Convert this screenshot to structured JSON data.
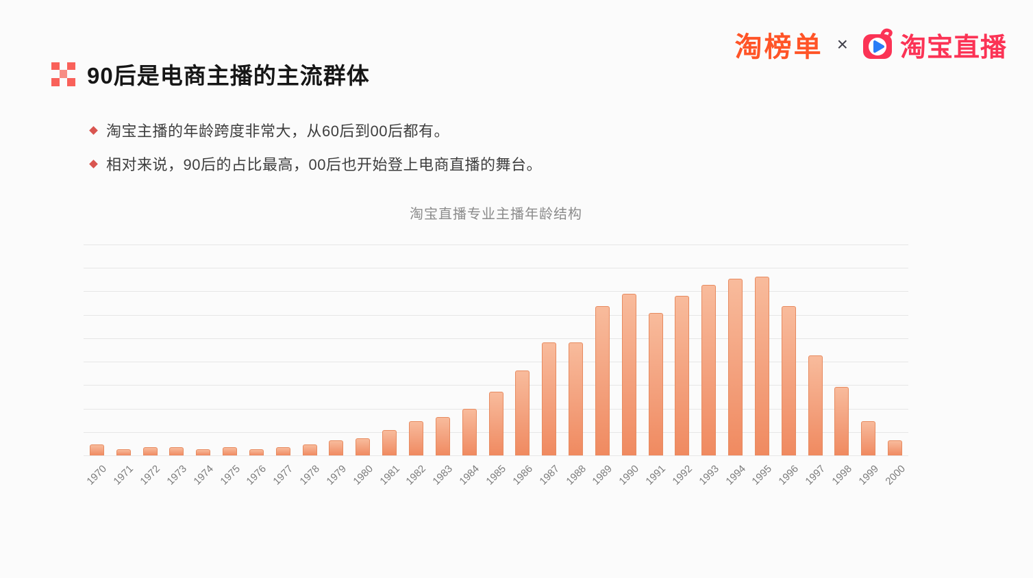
{
  "header": {
    "brand_left": "淘榜单",
    "separator": "×",
    "brand_right": "淘宝直播"
  },
  "title": {
    "text": "90后是电商主播的主流群体"
  },
  "bullets": [
    {
      "text": "淘宝主播的年龄跨度非常大，从60后到00后都有。"
    },
    {
      "text": "相对来说，90后的占比最高，00后也开始登上电商直播的舞台。"
    }
  ],
  "chart_data": {
    "type": "bar",
    "title": "淘宝直播专业主播年龄结构",
    "categories": [
      "1970",
      "1971",
      "1972",
      "1973",
      "1974",
      "1975",
      "1976",
      "1977",
      "1978",
      "1979",
      "1980",
      "1981",
      "1982",
      "1983",
      "1984",
      "1985",
      "1986",
      "1987",
      "1988",
      "1989",
      "1990",
      "1991",
      "1992",
      "1993",
      "1994",
      "1995",
      "1996",
      "1997",
      "1998",
      "1999",
      "2000"
    ],
    "values": [
      0.5,
      0.3,
      0.4,
      0.4,
      0.3,
      0.4,
      0.3,
      0.4,
      0.5,
      0.7,
      0.8,
      1.2,
      1.6,
      1.8,
      2.2,
      3.0,
      4.0,
      5.3,
      5.3,
      7.0,
      7.6,
      6.7,
      7.5,
      8.0,
      8.3,
      8.4,
      7.0,
      4.7,
      3.2,
      1.6,
      0.7
    ],
    "xlabel": "",
    "ylabel": "",
    "ylim": [
      0,
      9.9
    ],
    "y_gridline_count": 9,
    "grid": true,
    "legend": "none",
    "y_axis_labels_visible": false
  },
  "colors": {
    "accent_orange": "#ff5427",
    "accent_pink": "#fb3355",
    "play_blue": "#2b7cf6",
    "bullet_red": "#d95550",
    "bar_top": "#f8bb9c",
    "bar_bottom": "#f08a60",
    "bar_border": "#e78a5f",
    "grid": "#e6e6e6",
    "title_text": "#161616",
    "body_text": "#3e3e3e",
    "chart_title_text": "#8b8b8b",
    "axis_label_text": "#7c7c7c"
  }
}
